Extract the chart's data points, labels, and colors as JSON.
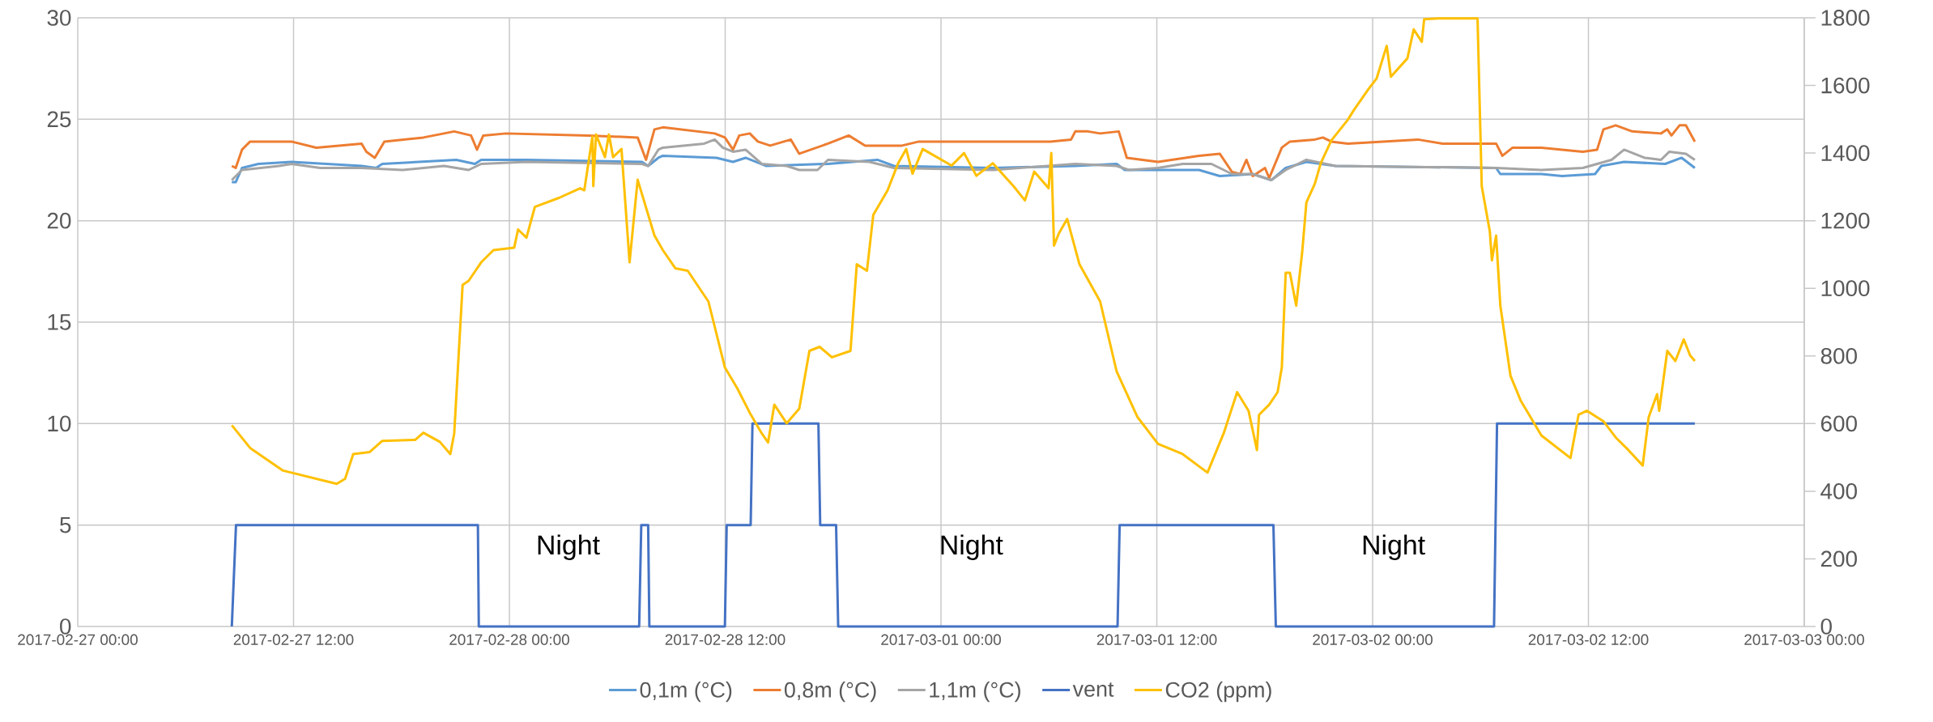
{
  "chart_data": {
    "type": "line",
    "xlim": [
      "2017-02-27T00:00",
      "2017-03-03T00:00"
    ],
    "xticks": [
      {
        "value": "2017-02-27T00:00",
        "label": "2017-02-27 00:00"
      },
      {
        "value": "2017-02-27T12:00",
        "label": "2017-02-27 12:00"
      },
      {
        "value": "2017-02-28T00:00",
        "label": "2017-02-28 00:00"
      },
      {
        "value": "2017-02-28T12:00",
        "label": "2017-02-28 12:00"
      },
      {
        "value": "2017-03-01T00:00",
        "label": "2017-03-01 00:00"
      },
      {
        "value": "2017-03-01T12:00",
        "label": "2017-03-01 12:00"
      },
      {
        "value": "2017-03-02T00:00",
        "label": "2017-03-02 00:00"
      },
      {
        "value": "2017-03-02T12:00",
        "label": "2017-03-02 12:00"
      },
      {
        "value": "2017-03-03T00:00",
        "label": "2017-03-03 00:00"
      }
    ],
    "ylim": [
      0,
      30
    ],
    "yticks": [
      0,
      5,
      10,
      15,
      20,
      25,
      30
    ],
    "y2lim": [
      0,
      1800
    ],
    "y2ticks": [
      0,
      200,
      400,
      600,
      800,
      1000,
      1200,
      1400,
      1600,
      1800
    ],
    "grid": true,
    "legend": "bottom",
    "annotations": [
      "Night",
      "Night",
      "Night"
    ],
    "series": [
      {
        "name": "0,1m (°C)",
        "color": "#5b9bd5",
        "x": [
          "2017-02-27T08:34",
          "2017-02-27T08:47",
          "2017-02-27T09:08",
          "2017-02-27T10:03",
          "2017-02-27T11:53",
          "2017-02-27T15:47",
          "2017-02-27T16:35",
          "2017-02-27T16:56",
          "2017-02-27T21:03",
          "2017-02-27T22:05",
          "2017-02-27T22:26",
          "2017-02-28T00:57",
          "2017-02-28T07:22",
          "2017-02-28T07:43",
          "2017-02-28T08:17",
          "2017-02-28T08:32",
          "2017-02-28T11:31",
          "2017-02-28T12:26",
          "2017-02-28T13:08",
          "2017-02-28T14:16",
          "2017-02-28T17:43",
          "2017-02-28T20:28",
          "2017-02-28T21:23",
          "2017-03-01T02:53",
          "2017-03-01T07:28",
          "2017-03-01T09:46",
          "2017-03-01T10:13",
          "2017-03-01T14:21",
          "2017-03-01T15:30",
          "2017-03-01T17:20",
          "2017-03-01T18:22",
          "2017-03-01T19:10",
          "2017-03-01T20:19",
          "2017-03-01T21:56",
          "2017-03-02T06:52",
          "2017-03-02T07:06",
          "2017-03-02T09:23",
          "2017-03-02T10:32",
          "2017-03-02T12:22",
          "2017-03-02T12:43",
          "2017-03-02T13:59",
          "2017-03-02T16:16",
          "2017-03-02T17:11",
          "2017-03-02T17:55"
        ],
        "values": [
          21.9,
          21.9,
          22.6,
          22.8,
          22.9,
          22.7,
          22.6,
          22.8,
          23.0,
          22.8,
          23.0,
          23.0,
          22.9,
          22.7,
          23.1,
          23.2,
          23.1,
          22.9,
          23.1,
          22.7,
          22.8,
          23.0,
          22.7,
          22.6,
          22.7,
          22.8,
          22.5,
          22.5,
          22.2,
          22.3,
          22.0,
          22.6,
          22.9,
          22.7,
          22.6,
          22.3,
          22.3,
          22.2,
          22.3,
          22.7,
          22.9,
          22.8,
          23.1,
          22.6
        ]
      },
      {
        "name": "0,8m (°C)",
        "color": "#ed7d31",
        "x": [
          "2017-02-27T08:34",
          "2017-02-27T08:47",
          "2017-02-27T09:08",
          "2017-02-27T09:35",
          "2017-02-27T11:53",
          "2017-02-27T13:16",
          "2017-02-27T15:47",
          "2017-02-27T16:03",
          "2017-02-27T16:31",
          "2017-02-27T17:03",
          "2017-02-27T19:13",
          "2017-02-27T20:56",
          "2017-02-27T21:52",
          "2017-02-27T22:12",
          "2017-02-27T22:33",
          "2017-02-27T23:49",
          "2017-02-28T04:23",
          "2017-02-28T07:08",
          "2017-02-28T07:36",
          "2017-02-28T08:04",
          "2017-02-28T08:32",
          "2017-02-28T11:25",
          "2017-02-28T11:59",
          "2017-02-28T12:26",
          "2017-02-28T12:47",
          "2017-02-28T13:22",
          "2017-02-28T13:49",
          "2017-02-28T14:30",
          "2017-02-28T15:39",
          "2017-02-28T16:07",
          "2017-02-28T17:43",
          "2017-02-28T18:52",
          "2017-02-28T19:47",
          "2017-02-28T21:50",
          "2017-02-28T22:46",
          "2017-03-01T00:35",
          "2017-03-01T06:05",
          "2017-03-01T07:14",
          "2017-03-01T07:28",
          "2017-03-01T08:10",
          "2017-03-01T08:51",
          "2017-03-01T09:53",
          "2017-03-01T10:20",
          "2017-03-01T12:04",
          "2017-03-01T14:21",
          "2017-03-01T15:30",
          "2017-03-01T16:11",
          "2017-03-01T16:38",
          "2017-03-01T16:59",
          "2017-03-01T17:20",
          "2017-03-01T18:01",
          "2017-03-01T18:15",
          "2017-03-01T18:57",
          "2017-03-01T19:24",
          "2017-03-01T20:47",
          "2017-03-01T21:14",
          "2017-03-01T21:42",
          "2017-03-01T22:37",
          "2017-03-02T02:31",
          "2017-03-02T03:53",
          "2017-03-02T06:52",
          "2017-03-02T07:13",
          "2017-03-02T07:47",
          "2017-03-02T09:23",
          "2017-03-02T11:41",
          "2017-03-02T12:29",
          "2017-03-02T12:50",
          "2017-03-02T13:31",
          "2017-03-02T14:26",
          "2017-03-02T16:02",
          "2017-03-02T16:23",
          "2017-03-02T16:37",
          "2017-03-02T17:04",
          "2017-03-02T17:25",
          "2017-03-02T17:55"
        ],
        "values": [
          22.7,
          22.6,
          23.5,
          23.9,
          23.9,
          23.6,
          23.8,
          23.4,
          23.1,
          23.9,
          24.1,
          24.4,
          24.2,
          23.5,
          24.2,
          24.3,
          24.2,
          24.1,
          23.0,
          24.5,
          24.6,
          24.3,
          24.1,
          23.5,
          24.2,
          24.3,
          23.9,
          23.7,
          24.0,
          23.3,
          23.8,
          24.2,
          23.7,
          23.7,
          23.9,
          23.9,
          23.9,
          24.0,
          24.4,
          24.4,
          24.3,
          24.4,
          23.1,
          22.9,
          23.2,
          23.3,
          22.4,
          22.3,
          23.0,
          22.2,
          22.6,
          22.1,
          23.6,
          23.9,
          24.0,
          24.1,
          23.9,
          23.8,
          24.0,
          23.8,
          23.8,
          23.2,
          23.6,
          23.6,
          23.4,
          23.5,
          24.5,
          24.7,
          24.4,
          24.3,
          24.5,
          24.2,
          24.7,
          24.7,
          23.9
        ]
      },
      {
        "name": "1,1m (°C)",
        "color": "#a5a5a5",
        "x": [
          "2017-02-27T08:34",
          "2017-02-27T09:08",
          "2017-02-27T11:12",
          "2017-02-27T11:53",
          "2017-02-27T13:29",
          "2017-02-27T15:47",
          "2017-02-27T18:04",
          "2017-02-27T20:22",
          "2017-02-27T21:44",
          "2017-02-27T22:26",
          "2017-02-28T00:57",
          "2017-02-28T07:22",
          "2017-02-28T07:43",
          "2017-02-28T08:17",
          "2017-02-28T08:32",
          "2017-02-28T10:50",
          "2017-02-28T11:25",
          "2017-02-28T11:52",
          "2017-02-28T12:26",
          "2017-02-28T13:08",
          "2017-02-28T14:02",
          "2017-02-28T15:25",
          "2017-02-28T16:07",
          "2017-02-28T17:08",
          "2017-02-28T17:43",
          "2017-02-28T20:01",
          "2017-02-28T21:23",
          "2017-03-01T02:53",
          "2017-03-01T07:28",
          "2017-03-01T09:46",
          "2017-03-01T10:27",
          "2017-03-01T12:04",
          "2017-03-01T13:26",
          "2017-03-01T15:02",
          "2017-03-01T16:11",
          "2017-03-01T17:20",
          "2017-03-01T18:22",
          "2017-03-01T19:10",
          "2017-03-01T20:19",
          "2017-03-01T21:56",
          "2017-03-02T06:52",
          "2017-03-02T09:23",
          "2017-03-02T11:41",
          "2017-03-02T13:17",
          "2017-03-02T13:59",
          "2017-03-02T15:07",
          "2017-03-02T16:02",
          "2017-03-02T16:30",
          "2017-03-02T17:25",
          "2017-03-02T17:55"
        ],
        "values": [
          22.0,
          22.5,
          22.7,
          22.8,
          22.6,
          22.6,
          22.5,
          22.7,
          22.5,
          22.8,
          22.9,
          22.8,
          22.7,
          23.5,
          23.6,
          23.8,
          24.0,
          23.6,
          23.4,
          23.5,
          22.8,
          22.7,
          22.5,
          22.5,
          23.0,
          22.9,
          22.6,
          22.5,
          22.8,
          22.7,
          22.5,
          22.6,
          22.8,
          22.8,
          22.3,
          22.3,
          22.0,
          22.5,
          23.0,
          22.7,
          22.6,
          22.5,
          22.6,
          23.0,
          23.5,
          23.1,
          23.0,
          23.4,
          23.3,
          23.0
        ]
      },
      {
        "name": "vent",
        "color": "#4472c4",
        "x": [
          "2017-02-27T08:34",
          "2017-02-27T08:48",
          "2017-02-27T22:15",
          "2017-02-27T22:18",
          "2017-02-28T07:13",
          "2017-02-28T07:20",
          "2017-02-28T07:43",
          "2017-02-28T07:47",
          "2017-02-28T11:59",
          "2017-02-28T12:05",
          "2017-02-28T13:25",
          "2017-02-28T13:31",
          "2017-02-28T17:11",
          "2017-02-28T17:17",
          "2017-02-28T18:10",
          "2017-02-28T18:17",
          "2017-03-01T09:49",
          "2017-03-01T09:56",
          "2017-03-01T18:29",
          "2017-03-01T18:37",
          "2017-03-02T06:45",
          "2017-03-02T06:55",
          "2017-03-02T17:55"
        ],
        "values": [
          0,
          5,
          5,
          0,
          0,
          5,
          5,
          0,
          0,
          5,
          5,
          10,
          10,
          5,
          5,
          0,
          0,
          5,
          5,
          0,
          0,
          10,
          10
        ]
      },
      {
        "name": "CO2 (ppm)",
        "color": "#ffc000",
        "axis": "y2",
        "x": [
          "2017-02-27T08:34",
          "2017-02-27T09:35",
          "2017-02-27T11:25",
          "2017-02-27T14:24",
          "2017-02-27T14:52",
          "2017-02-27T15:19",
          "2017-02-27T16:14",
          "2017-02-27T16:56",
          "2017-02-27T18:46",
          "2017-02-27T19:13",
          "2017-02-27T20:08",
          "2017-02-27T20:43",
          "2017-02-27T20:56",
          "2017-02-27T21:24",
          "2017-02-27T21:44",
          "2017-02-27T22:26",
          "2017-02-27T23:07",
          "2017-02-28T00:16",
          "2017-02-28T00:29",
          "2017-02-28T00:57",
          "2017-02-28T01:25",
          "2017-02-28T02:47",
          "2017-02-28T03:56",
          "2017-02-28T04:10",
          "2017-02-28T04:37",
          "2017-02-28T04:40",
          "2017-02-28T04:49",
          "2017-02-28T05:19",
          "2017-02-28T05:32",
          "2017-02-28T05:46",
          "2017-02-28T06:14",
          "2017-02-28T06:41",
          "2017-02-28T07:08",
          "2017-02-28T08:04",
          "2017-02-28T08:32",
          "2017-02-28T09:14",
          "2017-02-28T09:55",
          "2017-02-28T11:04",
          "2017-02-28T11:59",
          "2017-02-28T12:40",
          "2017-02-28T13:22",
          "2017-02-28T14:02",
          "2017-02-28T14:23",
          "2017-02-28T14:44",
          "2017-02-28T15:25",
          "2017-02-28T16:07",
          "2017-02-28T16:41",
          "2017-02-28T17:15",
          "2017-02-28T17:56",
          "2017-02-28T18:58",
          "2017-02-28T19:19",
          "2017-02-28T19:53",
          "2017-02-28T20:14",
          "2017-02-28T21:02",
          "2017-02-28T21:37",
          "2017-02-28T22:04",
          "2017-02-28T22:25",
          "2017-02-28T22:59",
          "2017-03-01T00:35",
          "2017-03-01T01:17",
          "2017-03-01T01:58",
          "2017-03-01T02:53",
          "2017-03-01T04:02",
          "2017-03-01T04:40",
          "2017-03-01T05:11",
          "2017-03-01T05:59",
          "2017-03-01T06:08",
          "2017-03-01T06:17",
          "2017-03-01T06:33",
          "2017-03-01T07:01",
          "2017-03-01T07:42",
          "2017-03-01T08:51",
          "2017-03-01T09:46",
          "2017-03-01T10:55",
          "2017-03-01T12:04",
          "2017-03-01T13:26",
          "2017-03-01T14:49",
          "2017-03-01T15:43",
          "2017-03-01T16:28",
          "2017-03-01T17:06",
          "2017-03-01T17:34",
          "2017-03-01T17:41",
          "2017-03-01T18:15",
          "2017-03-01T18:43",
          "2017-03-01T18:57",
          "2017-03-01T19:10",
          "2017-03-01T19:24",
          "2017-03-01T19:45",
          "2017-03-01T20:05",
          "2017-03-01T20:19",
          "2017-03-01T20:47",
          "2017-03-01T21:07",
          "2017-03-01T21:42",
          "2017-03-01T22:37",
          "2017-03-01T22:58",
          "2017-03-01T23:46",
          "2017-03-02T00:13",
          "2017-03-02T00:47",
          "2017-03-02T01:01",
          "2017-03-02T01:56",
          "2017-03-02T02:17",
          "2017-03-02T02:44",
          "2017-03-02T02:52",
          "2017-03-02T03:40",
          "2017-03-02T05:50",
          "2017-03-02T06:04",
          "2017-03-02T06:31",
          "2017-03-02T06:38",
          "2017-03-02T06:52",
          "2017-03-02T07:06",
          "2017-03-02T07:40",
          "2017-03-02T08:14",
          "2017-03-02T09:23",
          "2017-03-02T11:00",
          "2017-03-02T11:27",
          "2017-03-02T11:55",
          "2017-03-02T12:50",
          "2017-03-02T13:31",
          "2017-03-02T14:13",
          "2017-03-02T15:01",
          "2017-03-02T15:21",
          "2017-03-02T15:49",
          "2017-03-02T15:56",
          "2017-03-02T16:23",
          "2017-03-02T16:50",
          "2017-03-02T17:18",
          "2017-03-02T17:39",
          "2017-03-02T17:55"
        ],
        "values": [
          595,
          528,
          461,
          422,
          437,
          510,
          516,
          549,
          552,
          573,
          546,
          510,
          571,
          1010,
          1022,
          1077,
          1113,
          1120,
          1174,
          1150,
          1241,
          1268,
          1296,
          1290,
          1449,
          1302,
          1455,
          1388,
          1455,
          1388,
          1412,
          1077,
          1321,
          1156,
          1113,
          1059,
          1052,
          961,
          766,
          705,
          632,
          571,
          544,
          656,
          601,
          644,
          815,
          827,
          796,
          815,
          1071,
          1052,
          1217,
          1290,
          1370,
          1412,
          1339,
          1412,
          1363,
          1400,
          1333,
          1370,
          1302,
          1260,
          1345,
          1296,
          1400,
          1126,
          1162,
          1205,
          1071,
          961,
          754,
          620,
          540,
          510,
          455,
          571,
          693,
          638,
          522,
          626,
          656,
          693,
          766,
          1046,
          1046,
          949,
          1107,
          1254,
          1309,
          1370,
          1437,
          1498,
          1528,
          1589,
          1620,
          1717,
          1626,
          1680,
          1766,
          1729,
          1796,
          1798,
          1798,
          1302,
          1168,
          1083,
          1156,
          949,
          741,
          668,
          565,
          498,
          626,
          638,
          607,
          559,
          522,
          476,
          619,
          687,
          638,
          815,
          785,
          849,
          802,
          785
        ]
      }
    ]
  }
}
